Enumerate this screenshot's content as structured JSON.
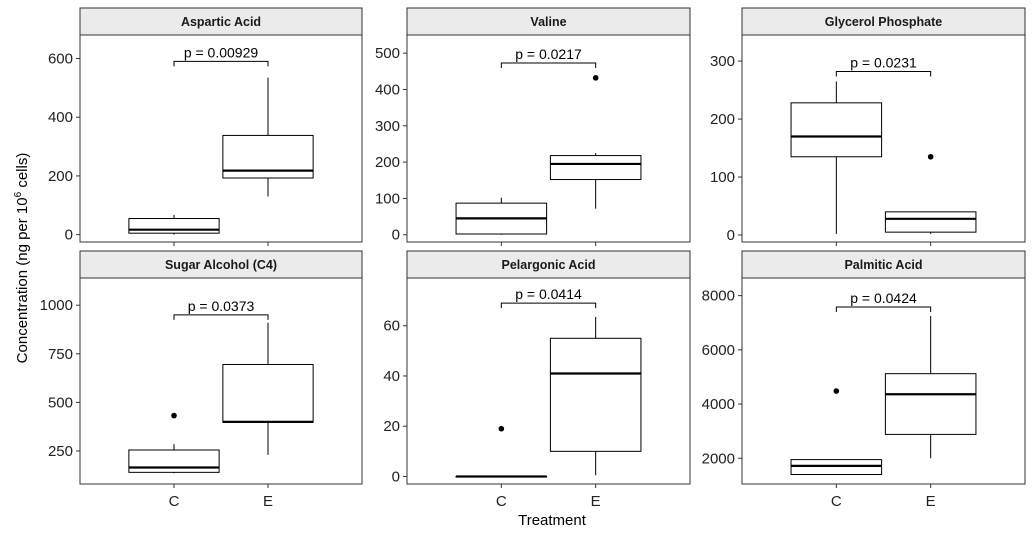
{
  "figure": {
    "xlabel": "Treatment",
    "ylabel_prefix": "Concentration (ng per 10",
    "ylabel_sup": "6",
    "ylabel_suffix": " cells)"
  },
  "chart_data": [
    {
      "type": "box",
      "title": "Aspartic Acid",
      "categories": [
        "C",
        "E"
      ],
      "ylim": [
        -25,
        680
      ],
      "yticks": [
        0,
        200,
        400,
        600
      ],
      "ytick_labels": [
        "0",
        "200",
        "400",
        "600"
      ],
      "boxes": [
        {
          "category": "C",
          "lower_whisker": 0,
          "q1": 5,
          "median": 17,
          "q3": 55,
          "upper_whisker": 67,
          "outliers": []
        },
        {
          "category": "E",
          "lower_whisker": 130,
          "q1": 193,
          "median": 218,
          "q3": 338,
          "upper_whisker": 535,
          "outliers": []
        }
      ],
      "annotation": {
        "text": "p = 0.00929",
        "y": 590
      }
    },
    {
      "type": "box",
      "title": "Valine",
      "categories": [
        "C",
        "E"
      ],
      "ylim": [
        -20,
        550
      ],
      "yticks": [
        0,
        100,
        200,
        300,
        400,
        500
      ],
      "ytick_labels": [
        "0",
        "100",
        "200",
        "300",
        "400",
        "500"
      ],
      "boxes": [
        {
          "category": "C",
          "lower_whisker": 0,
          "q1": 2,
          "median": 45,
          "q3": 87,
          "upper_whisker": 102,
          "outliers": []
        },
        {
          "category": "E",
          "lower_whisker": 72,
          "q1": 152,
          "median": 195,
          "q3": 218,
          "upper_whisker": 225,
          "outliers": [
            432
          ]
        }
      ],
      "annotation": {
        "text": "p = 0.0217",
        "y": 473
      }
    },
    {
      "type": "box",
      "title": "Glycerol Phosphate",
      "categories": [
        "C",
        "E"
      ],
      "ylim": [
        -12,
        345
      ],
      "yticks": [
        0,
        100,
        200,
        300
      ],
      "ytick_labels": [
        "0",
        "100",
        "200",
        "300"
      ],
      "boxes": [
        {
          "category": "C",
          "lower_whisker": 2,
          "q1": 135,
          "median": 170,
          "q3": 228,
          "upper_whisker": 265,
          "outliers": []
        },
        {
          "category": "E",
          "lower_whisker": 2,
          "q1": 5,
          "median": 28,
          "q3": 40,
          "upper_whisker": 40,
          "outliers": [
            135
          ]
        }
      ],
      "annotation": {
        "text": "p = 0.0231",
        "y": 282
      }
    },
    {
      "type": "box",
      "title": "Sugar Alcohol (C4)",
      "categories": [
        "C",
        "E"
      ],
      "ylim": [
        80,
        1140
      ],
      "yticks": [
        250,
        500,
        750,
        1000
      ],
      "ytick_labels": [
        "250",
        "500",
        "750",
        "1000"
      ],
      "boxes": [
        {
          "category": "C",
          "lower_whisker": 135,
          "q1": 140,
          "median": 165,
          "q3": 255,
          "upper_whisker": 285,
          "outliers": [
            432
          ]
        },
        {
          "category": "E",
          "lower_whisker": 230,
          "q1": 397,
          "median": 400,
          "q3": 695,
          "upper_whisker": 910,
          "outliers": []
        }
      ],
      "annotation": {
        "text": "p = 0.0373",
        "y": 950
      }
    },
    {
      "type": "box",
      "title": "Pelargonic Acid",
      "categories": [
        "C",
        "E"
      ],
      "ylim": [
        -3,
        79
      ],
      "yticks": [
        0,
        20,
        40,
        60
      ],
      "ytick_labels": [
        "0",
        "20",
        "40",
        "60"
      ],
      "boxes": [
        {
          "category": "C",
          "lower_whisker": 0,
          "q1": 0,
          "median": 0,
          "q3": 0,
          "upper_whisker": 0,
          "outliers": [
            19
          ]
        },
        {
          "category": "E",
          "lower_whisker": 0.5,
          "q1": 10,
          "median": 41,
          "q3": 55,
          "upper_whisker": 63.5,
          "outliers": []
        }
      ],
      "annotation": {
        "text": "p = 0.0414",
        "y": 69
      }
    },
    {
      "type": "box",
      "title": "Palmitic Acid",
      "categories": [
        "C",
        "E"
      ],
      "ylim": [
        1050,
        8650
      ],
      "yticks": [
        2000,
        4000,
        6000,
        8000
      ],
      "ytick_labels": [
        "2000",
        "4000",
        "6000",
        "8000"
      ],
      "boxes": [
        {
          "category": "C",
          "lower_whisker": 1400,
          "q1": 1400,
          "median": 1720,
          "q3": 1950,
          "upper_whisker": 1950,
          "outliers": [
            4480
          ]
        },
        {
          "category": "E",
          "lower_whisker": 2000,
          "q1": 2880,
          "median": 4360,
          "q3": 5120,
          "upper_whisker": 7250,
          "outliers": []
        }
      ],
      "annotation": {
        "text": "p = 0.0424",
        "y": 7580
      }
    }
  ]
}
